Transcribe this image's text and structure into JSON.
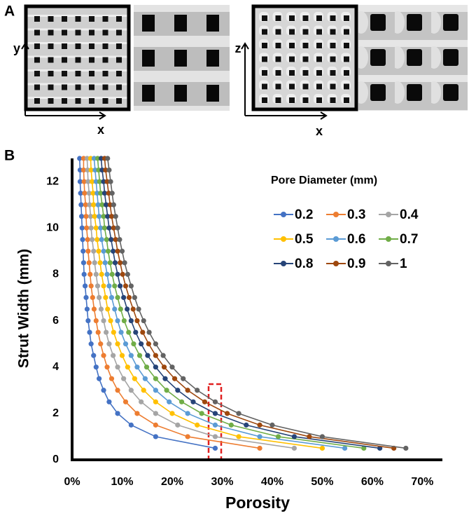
{
  "figure": {
    "panel_a": "A",
    "panel_b": "B",
    "panel_a_axes": [
      "y",
      "x",
      "z",
      "x"
    ]
  },
  "chart_data": {
    "type": "line",
    "x_label": "Porosity",
    "y_label": "Strut Width (mm)",
    "legend_title": "Pore Diameter (mm)",
    "legend": "upper right",
    "xlim": [
      0,
      74
    ],
    "ylim": [
      0,
      13
    ],
    "xticks": [
      {
        "value": 0,
        "label": "0%"
      },
      {
        "value": 10,
        "label": "10%"
      },
      {
        "value": 20,
        "label": "20%"
      },
      {
        "value": 30,
        "label": "30%"
      },
      {
        "value": 40,
        "label": "40%"
      },
      {
        "value": 50,
        "label": "50%"
      },
      {
        "value": 60,
        "label": "60%"
      },
      {
        "value": 70,
        "label": "70%"
      }
    ],
    "yticks": [
      0,
      2,
      4,
      6,
      8,
      10,
      12
    ],
    "y": [
      0.5,
      1,
      1.5,
      2,
      2.5,
      3,
      3.5,
      4,
      4.5,
      5,
      5.5,
      6,
      6.5,
      7,
      7.5,
      8,
      8.5,
      9,
      9.5,
      10,
      10.5,
      11,
      11.5,
      12,
      12.5,
      13
    ],
    "series": [
      {
        "name": "0.2",
        "color": "#4472c4",
        "x": [
          28.6,
          16.7,
          11.8,
          9.1,
          7.4,
          6.3,
          5.4,
          4.8,
          4.3,
          3.8,
          3.5,
          3.2,
          3.0,
          2.8,
          2.6,
          2.4,
          2.3,
          2.2,
          2.1,
          2.0,
          1.9,
          1.8,
          1.7,
          1.6,
          1.6,
          1.5
        ]
      },
      {
        "name": "0.3",
        "color": "#ed7d31",
        "x": [
          37.5,
          23.1,
          16.7,
          13.0,
          10.7,
          9.1,
          7.9,
          7.0,
          6.3,
          5.7,
          5.2,
          4.8,
          4.4,
          4.1,
          3.8,
          3.6,
          3.4,
          3.2,
          3.1,
          2.9,
          2.8,
          2.7,
          2.5,
          2.4,
          2.3,
          2.3
        ]
      },
      {
        "name": "0.4",
        "color": "#a5a5a5",
        "x": [
          44.4,
          28.6,
          21.1,
          16.7,
          13.8,
          11.8,
          10.3,
          9.1,
          8.2,
          7.4,
          6.8,
          6.3,
          5.8,
          5.4,
          5.1,
          4.8,
          4.5,
          4.3,
          4.0,
          3.8,
          3.7,
          3.5,
          3.4,
          3.2,
          3.1,
          3.0
        ]
      },
      {
        "name": "0.5",
        "color": "#ffc000",
        "x": [
          50.0,
          33.3,
          25.0,
          20.0,
          16.7,
          14.3,
          12.5,
          11.1,
          10.0,
          9.1,
          8.3,
          7.7,
          7.1,
          6.7,
          6.3,
          5.9,
          5.6,
          5.3,
          5.0,
          4.8,
          4.5,
          4.3,
          4.2,
          4.0,
          3.8,
          3.7
        ]
      },
      {
        "name": "0.6",
        "color": "#5b9bd5",
        "x": [
          54.5,
          37.5,
          28.6,
          23.1,
          19.4,
          16.7,
          14.6,
          13.0,
          11.8,
          10.7,
          9.8,
          9.1,
          8.5,
          7.9,
          7.4,
          7.0,
          6.6,
          6.3,
          5.9,
          5.7,
          5.4,
          5.2,
          5.0,
          4.8,
          4.6,
          4.4
        ]
      },
      {
        "name": "0.7",
        "color": "#70ad47",
        "x": [
          58.3,
          41.2,
          31.8,
          25.9,
          21.9,
          18.9,
          16.7,
          14.9,
          13.5,
          12.3,
          11.3,
          10.4,
          9.7,
          9.1,
          8.5,
          8.0,
          7.6,
          7.2,
          6.9,
          6.5,
          6.3,
          6.0,
          5.7,
          5.5,
          5.3,
          5.1
        ]
      },
      {
        "name": "0.8",
        "color": "#264478",
        "x": [
          61.5,
          44.4,
          34.8,
          28.6,
          24.2,
          21.1,
          18.6,
          16.7,
          15.1,
          13.8,
          12.7,
          11.8,
          11.0,
          10.3,
          9.6,
          9.1,
          8.6,
          8.2,
          7.8,
          7.4,
          7.1,
          6.8,
          6.5,
          6.3,
          6.0,
          5.8
        ]
      },
      {
        "name": "0.9",
        "color": "#9e480e",
        "x": [
          64.3,
          47.4,
          37.5,
          31.0,
          26.5,
          23.1,
          20.5,
          18.4,
          16.7,
          15.3,
          14.1,
          13.0,
          12.2,
          11.4,
          10.7,
          10.1,
          9.6,
          9.1,
          8.7,
          8.3,
          7.9,
          7.6,
          7.3,
          7.0,
          6.7,
          6.5
        ]
      },
      {
        "name": "1",
        "color": "#636363",
        "x": [
          66.7,
          50.0,
          40.0,
          33.3,
          28.6,
          25.0,
          22.2,
          20.0,
          18.2,
          16.7,
          15.4,
          14.3,
          13.3,
          12.5,
          11.8,
          11.1,
          10.5,
          10.0,
          9.5,
          9.1,
          8.7,
          8.3,
          8.0,
          7.7,
          7.4,
          7.1
        ]
      }
    ]
  }
}
